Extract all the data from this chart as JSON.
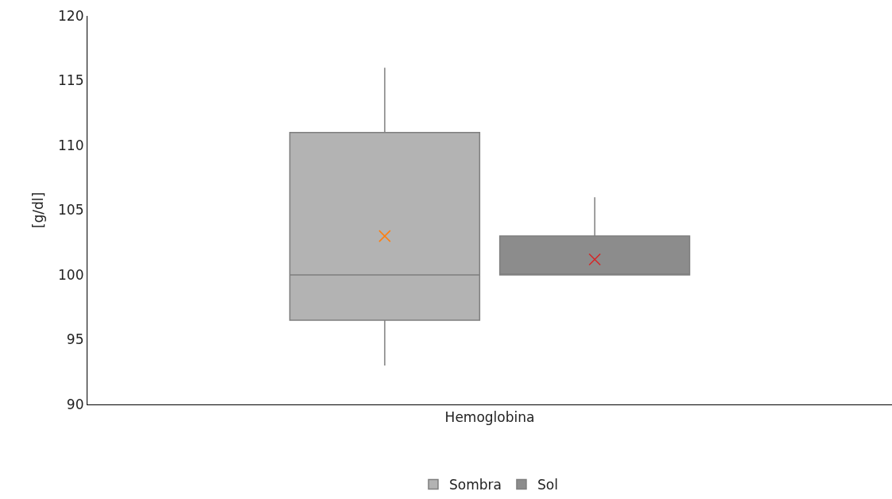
{
  "chart_data": {
    "type": "box",
    "categories": [
      "Hemoglobina"
    ],
    "ylabel": "[g/dl]",
    "ylim": [
      90,
      120
    ],
    "yticks": [
      90,
      95,
      100,
      105,
      110,
      115,
      120
    ],
    "grid": false,
    "legend": "bottom",
    "marker": "cross",
    "series": [
      {
        "name": "Sombra",
        "color": "#b3b3b3",
        "boxes": [
          {
            "low": 93,
            "q1": 96.5,
            "median": 100,
            "q3": 111,
            "high": 116,
            "mean": 103
          }
        ]
      },
      {
        "name": "Sol",
        "color": "#8c8c8c",
        "boxes": [
          {
            "low": 100,
            "q1": 100,
            "median": 100,
            "q3": 103,
            "high": 106,
            "mean": 101.2
          }
        ]
      }
    ]
  }
}
